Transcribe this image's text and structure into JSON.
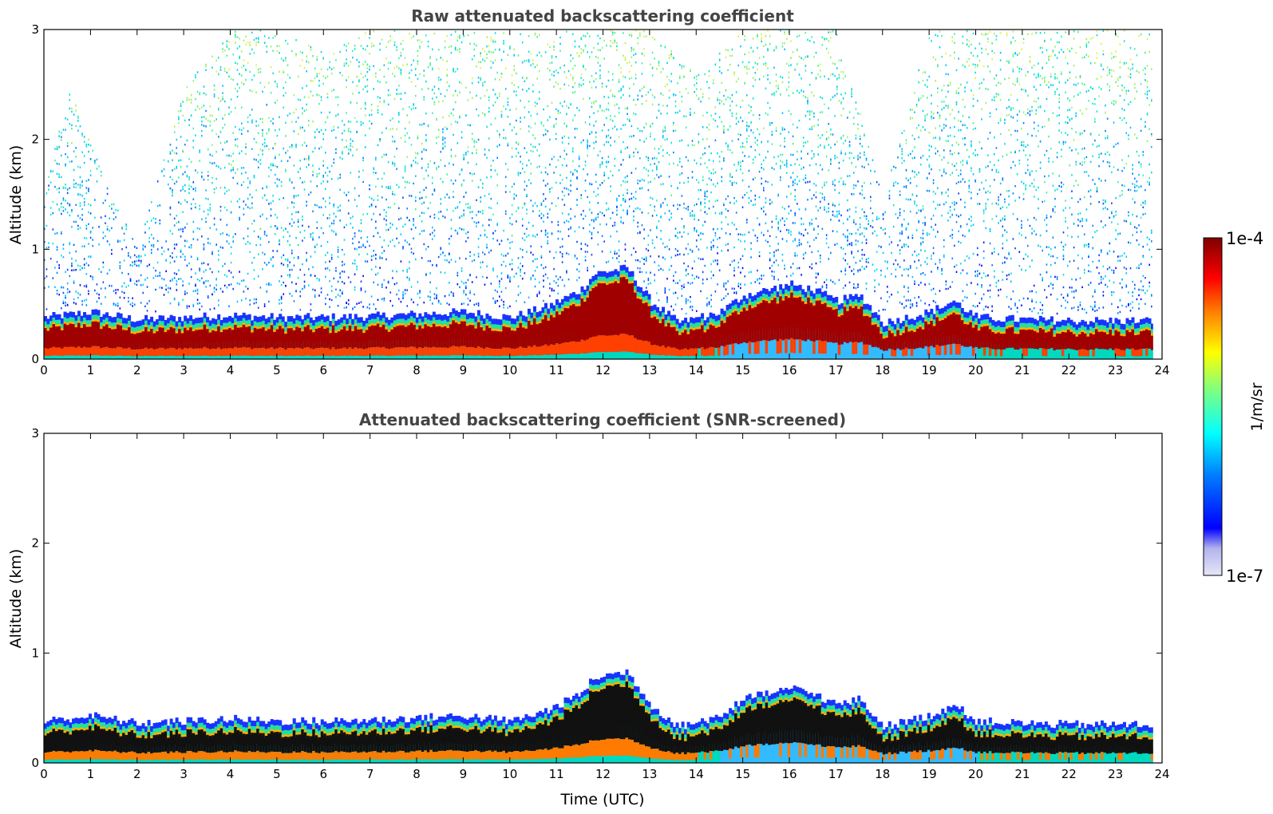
{
  "chart_data": [
    {
      "type": "heatmap",
      "title": "Raw attenuated backscattering coefficient",
      "xlabel": "",
      "ylabel": "Altitude (km)",
      "xlim": [
        0,
        24
      ],
      "ylim": [
        0,
        3
      ],
      "xticks": [
        "0",
        "1",
        "2",
        "3",
        "4",
        "5",
        "6",
        "7",
        "8",
        "9",
        "10",
        "11",
        "12",
        "13",
        "14",
        "15",
        "16",
        "17",
        "18",
        "19",
        "20",
        "21",
        "22",
        "23",
        "24"
      ],
      "yticks": [
        "0",
        "1",
        "2",
        "3"
      ],
      "boundary_layer_top_km": {
        "time_utc": [
          0,
          1,
          2,
          3,
          4,
          5,
          6,
          7,
          8,
          9,
          10,
          10.8,
          11.5,
          11.8,
          12.5,
          13,
          13.6,
          14.5,
          15,
          15.5,
          16,
          16.5,
          17,
          17.5,
          18,
          18.5,
          19,
          19.5,
          20,
          21,
          22,
          23,
          23.8
        ],
        "altitude_km": [
          0.35,
          0.4,
          0.33,
          0.35,
          0.37,
          0.35,
          0.35,
          0.36,
          0.38,
          0.4,
          0.35,
          0.45,
          0.6,
          0.75,
          0.8,
          0.5,
          0.3,
          0.4,
          0.55,
          0.6,
          0.65,
          0.6,
          0.5,
          0.55,
          0.3,
          0.35,
          0.4,
          0.5,
          0.35,
          0.33,
          0.32,
          0.32,
          0.32
        ]
      },
      "signal_top_km": {
        "time_utc": [
          0,
          0.5,
          1,
          2,
          3,
          4,
          5,
          6,
          7,
          8,
          9,
          10,
          11,
          12,
          13,
          14,
          15,
          16,
          17,
          18,
          19,
          20,
          21,
          22,
          23,
          23.8
        ],
        "altitude_km": [
          1.5,
          2.5,
          2.0,
          1.0,
          2.5,
          3.0,
          3.0,
          2.8,
          3.0,
          3.0,
          3.0,
          3.0,
          3.0,
          3.0,
          3.0,
          2.6,
          3.0,
          3.0,
          3.0,
          1.5,
          3.0,
          3.0,
          3.0,
          3.0,
          3.0,
          3.0
        ]
      }
    },
    {
      "type": "heatmap",
      "title": "Attenuated backscattering coefficient (SNR-screened)",
      "xlabel": "Time (UTC)",
      "ylabel": "Altitude (km)",
      "xlim": [
        0,
        24
      ],
      "ylim": [
        0,
        3
      ],
      "xticks": [
        "0",
        "1",
        "2",
        "3",
        "4",
        "5",
        "6",
        "7",
        "8",
        "9",
        "10",
        "11",
        "12",
        "13",
        "14",
        "15",
        "16",
        "17",
        "18",
        "19",
        "20",
        "21",
        "22",
        "23",
        "24"
      ],
      "yticks": [
        "0",
        "1",
        "2",
        "3"
      ],
      "boundary_layer_top_km": {
        "time_utc": [
          0,
          1,
          2,
          3,
          4,
          5,
          6,
          7,
          8,
          9,
          10,
          10.8,
          11.5,
          11.8,
          12.5,
          13,
          13.6,
          14.5,
          15,
          15.5,
          16,
          16.5,
          17,
          17.5,
          18,
          18.5,
          19,
          19.5,
          20,
          21,
          22,
          23,
          23.8
        ],
        "altitude_km": [
          0.35,
          0.4,
          0.33,
          0.35,
          0.37,
          0.35,
          0.35,
          0.36,
          0.38,
          0.4,
          0.35,
          0.45,
          0.6,
          0.75,
          0.8,
          0.5,
          0.3,
          0.4,
          0.55,
          0.6,
          0.65,
          0.6,
          0.5,
          0.55,
          0.3,
          0.35,
          0.4,
          0.5,
          0.35,
          0.33,
          0.32,
          0.32,
          0.32
        ]
      }
    }
  ],
  "colorbar": {
    "label": "1/m/sr",
    "max_label": "1e-4",
    "min_label": "1e-7",
    "scale": "log",
    "colormap": "jet",
    "colors": [
      "#e6e6f7",
      "#b3b3ee",
      "#0000ff",
      "#0080ff",
      "#00ffff",
      "#80ff80",
      "#ffff00",
      "#ff8000",
      "#ff0000",
      "#800000"
    ]
  }
}
